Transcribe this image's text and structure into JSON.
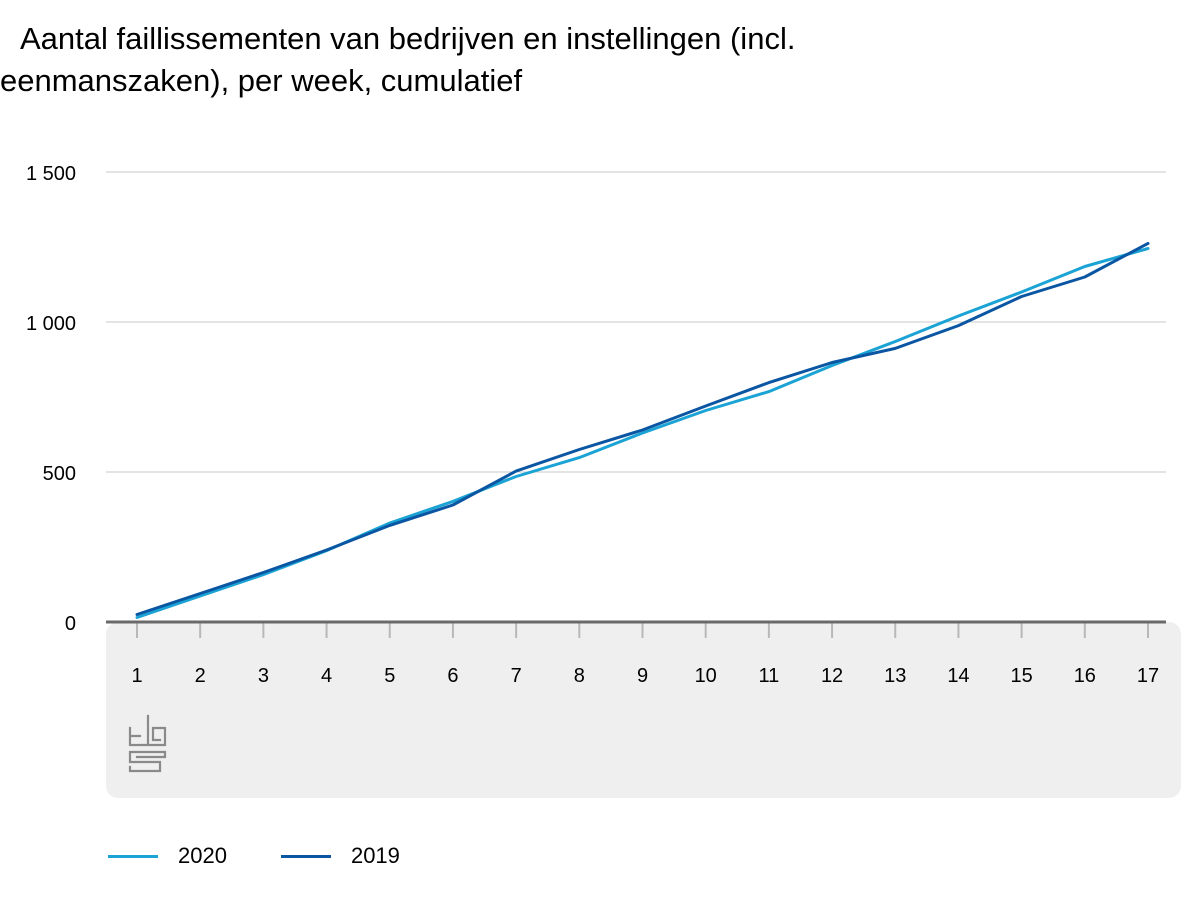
{
  "title_line1": "Aantal faillissementen van bedrijven en instellingen (incl.",
  "title_line2": "eenmanszaken), per week, cumulatief",
  "colors": {
    "s2020": "#1aa3d4",
    "s2019": "#0a56a3",
    "grid": "#c8c8c8",
    "axis": "#6a6a6a",
    "band": "#efefef",
    "logo": "#8a8a8a"
  },
  "logo_icon": "cbs-logo-icon",
  "chart_data": {
    "type": "line",
    "x": [
      1,
      2,
      3,
      4,
      5,
      6,
      7,
      8,
      9,
      10,
      11,
      12,
      13,
      14,
      15,
      16,
      17
    ],
    "ylim": [
      0,
      1500
    ],
    "yticks": [
      0,
      500,
      1000,
      1500
    ],
    "ytick_labels": [
      "0",
      "500",
      "1 000",
      "1 500"
    ],
    "xtick_labels": [
      "1",
      "2",
      "3",
      "4",
      "5",
      "6",
      "7",
      "8",
      "9",
      "10",
      "11",
      "12",
      "13",
      "14",
      "15",
      "16",
      "17"
    ],
    "grid": true,
    "legend_position": "bottom-left",
    "series": [
      {
        "name": "2020",
        "color": "#1aa3d4",
        "values": [
          15,
          87,
          158,
          238,
          330,
          402,
          485,
          548,
          630,
          705,
          768,
          855,
          935,
          1020,
          1100,
          1185,
          1245
        ]
      },
      {
        "name": "2019",
        "color": "#0a56a3",
        "values": [
          25,
          95,
          165,
          240,
          322,
          390,
          503,
          575,
          640,
          720,
          798,
          865,
          912,
          988,
          1085,
          1150,
          1262
        ]
      }
    ]
  }
}
